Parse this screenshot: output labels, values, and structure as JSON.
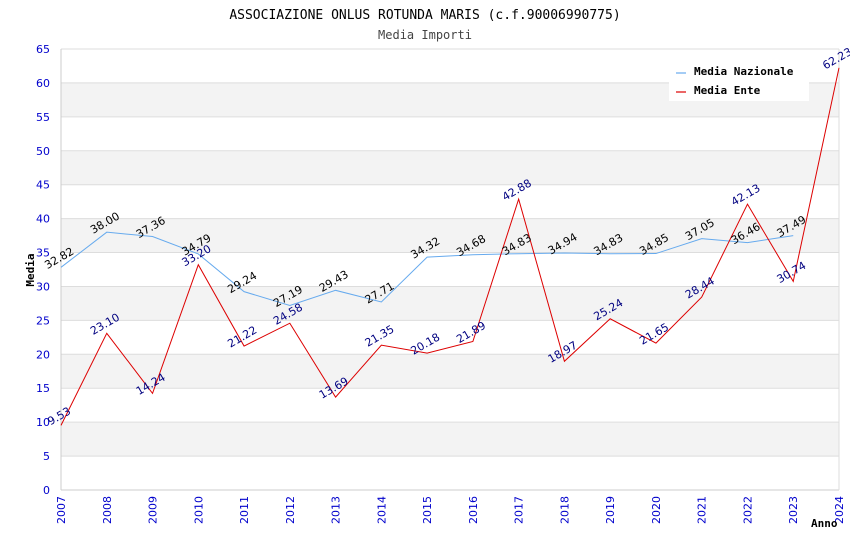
{
  "chart_data": {
    "type": "line",
    "title": "ASSOCIAZIONE ONLUS ROTUNDA MARIS (c.f.90006990775)",
    "subtitle": "Media Importi",
    "xlabel": "Anno",
    "ylabel": "Media",
    "ylim": [
      0,
      65
    ],
    "yticks": [
      0,
      5,
      10,
      15,
      20,
      25,
      30,
      35,
      40,
      45,
      50,
      55,
      60,
      65
    ],
    "ytick_labels": [
      "0",
      "5",
      "10",
      "15",
      "20",
      "25",
      "30",
      "35",
      "40",
      "45",
      "50",
      "55",
      "60",
      "65"
    ],
    "x": [
      "2007",
      "2008",
      "2009",
      "2010",
      "2011",
      "2012",
      "2013",
      "2014",
      "2015",
      "2016",
      "2017",
      "2018",
      "2019",
      "2020",
      "2021",
      "2022",
      "2023",
      "2024"
    ],
    "grid": true,
    "legend_position": "top-right",
    "series": [
      {
        "name": "Media Nazionale",
        "color": "#66aaee",
        "label_color": "#000000",
        "values": [
          32.82,
          38.0,
          37.36,
          34.79,
          29.24,
          27.19,
          29.43,
          27.71,
          34.32,
          34.68,
          34.83,
          34.94,
          34.83,
          34.85,
          37.05,
          36.46,
          37.49,
          null
        ],
        "labels": [
          "32.82",
          "38.00",
          "37.36",
          "34.79",
          "29.24",
          "27.19",
          "29.43",
          "27.71",
          "34.32",
          "34.68",
          "34.83",
          "34.94",
          "34.83",
          "34.85",
          "37.05",
          "36.46",
          "37.49",
          ""
        ]
      },
      {
        "name": "Media Ente",
        "color": "#dd0000",
        "label_color": "#000080",
        "values": [
          9.53,
          23.1,
          14.24,
          33.2,
          21.22,
          24.58,
          13.69,
          21.35,
          20.18,
          21.89,
          42.88,
          18.97,
          25.24,
          21.65,
          28.44,
          42.13,
          30.74,
          62.23
        ],
        "labels": [
          "9.53",
          "23.10",
          "14.24",
          "33.20",
          "21.22",
          "24.58",
          "13.69",
          "21.35",
          "20.18",
          "21.89",
          "42.88",
          "18.97",
          "25.24",
          "21.65",
          "28.44",
          "42.13",
          "30.74",
          "62.23"
        ]
      }
    ]
  }
}
